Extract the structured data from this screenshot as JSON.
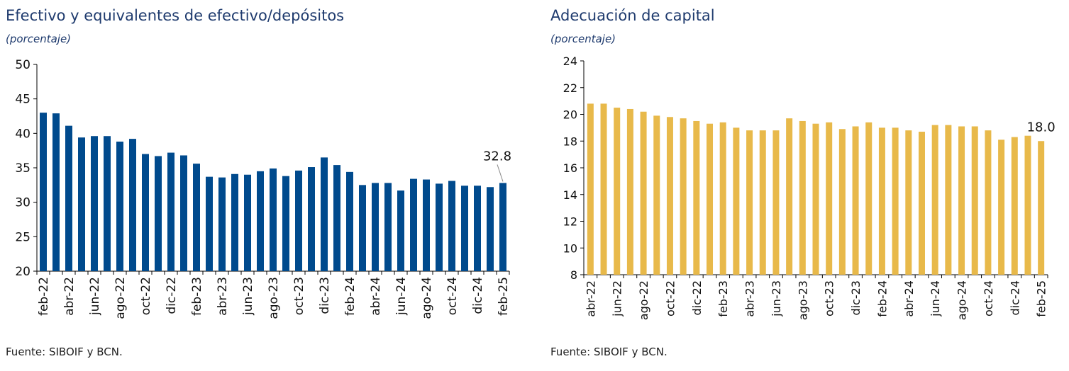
{
  "chart_data": [
    {
      "type": "bar",
      "title": "Efectivo y equivalentes de efectivo/depósitos",
      "subtitle": "(porcentaje)",
      "source": "Fuente: SIBOIF y BCN.",
      "color": "#004a8d",
      "ylim": [
        20,
        50
      ],
      "yticks": [
        20,
        25,
        30,
        35,
        40,
        45,
        50
      ],
      "tick_labels": [
        "feb-22",
        "abr-22",
        "jun-22",
        "ago-22",
        "oct-22",
        "dic-22",
        "feb-23",
        "abr-23",
        "jun-23",
        "ago-23",
        "oct-23",
        "dic-23",
        "feb-24",
        "abr-24",
        "jun-24",
        "ago-24",
        "oct-24",
        "dic-24",
        "feb-25"
      ],
      "categories": [
        "feb-22",
        "mar-22",
        "abr-22",
        "may-22",
        "jun-22",
        "jul-22",
        "ago-22",
        "sep-22",
        "oct-22",
        "nov-22",
        "dic-22",
        "ene-23",
        "feb-23",
        "mar-23",
        "abr-23",
        "may-23",
        "jun-23",
        "jul-23",
        "ago-23",
        "sep-23",
        "oct-23",
        "nov-23",
        "dic-23",
        "ene-24",
        "feb-24",
        "mar-24",
        "abr-24",
        "may-24",
        "jun-24",
        "jul-24",
        "ago-24",
        "sep-24",
        "oct-24",
        "nov-24",
        "dic-24",
        "ene-25",
        "feb-25"
      ],
      "values": [
        43.0,
        42.9,
        41.1,
        39.4,
        39.6,
        39.6,
        38.8,
        39.2,
        37.0,
        36.7,
        37.2,
        36.8,
        35.6,
        33.7,
        33.6,
        34.1,
        34.0,
        34.5,
        34.9,
        33.8,
        34.6,
        35.1,
        36.5,
        35.4,
        34.4,
        32.5,
        32.8,
        32.8,
        31.7,
        33.4,
        33.3,
        32.7,
        33.1,
        32.4,
        32.4,
        32.2,
        32.8
      ],
      "annotation": {
        "text": "32.8",
        "index": 36
      }
    },
    {
      "type": "bar",
      "title": "Adecuación de capital",
      "subtitle": "(porcentaje)",
      "source": "Fuente: SIBOIF y BCN.",
      "color": "#e8b94a",
      "ylim": [
        8,
        24
      ],
      "yticks": [
        8,
        10,
        12,
        14,
        16,
        18,
        20,
        22,
        24
      ],
      "tick_labels": [
        "abr-22",
        "jun-22",
        "ago-22",
        "oct-22",
        "dic-22",
        "feb-23",
        "abr-23",
        "jun-23",
        "ago-23",
        "oct-23",
        "dic-23",
        "feb-24",
        "abr-24",
        "jun-24",
        "ago-24",
        "oct-24",
        "dic-24",
        "feb-25"
      ],
      "categories": [
        "abr-22",
        "may-22",
        "jun-22",
        "jul-22",
        "ago-22",
        "sep-22",
        "oct-22",
        "nov-22",
        "dic-22",
        "ene-23",
        "feb-23",
        "mar-23",
        "abr-23",
        "may-23",
        "jun-23",
        "jul-23",
        "ago-23",
        "sep-23",
        "oct-23",
        "nov-23",
        "dic-23",
        "ene-24",
        "feb-24",
        "mar-24",
        "abr-24",
        "may-24",
        "jun-24",
        "jul-24",
        "ago-24",
        "sep-24",
        "oct-24",
        "nov-24",
        "dic-24",
        "ene-25",
        "feb-25"
      ],
      "values": [
        20.8,
        20.8,
        20.5,
        20.4,
        20.2,
        19.9,
        19.8,
        19.7,
        19.5,
        19.3,
        19.4,
        19.0,
        18.8,
        18.8,
        18.8,
        19.7,
        19.5,
        19.3,
        19.4,
        18.9,
        19.1,
        19.4,
        19.0,
        19.0,
        18.8,
        18.7,
        19.2,
        19.2,
        19.1,
        19.1,
        18.8,
        18.1,
        18.3,
        18.4,
        18.0
      ],
      "annotation": {
        "text": "18.0",
        "index": 34
      }
    }
  ]
}
